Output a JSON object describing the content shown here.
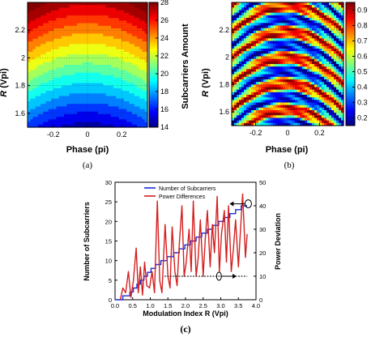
{
  "panels": {
    "a": {
      "caption": "(a)"
    },
    "b": {
      "caption": "(b)"
    },
    "c": {
      "caption": "(c)"
    }
  },
  "chart_data": [
    {
      "id": "a",
      "type": "heatmap",
      "xlabel": "Phase (pi)",
      "ylabel_italic": "R",
      "ylabel_rest": " (Vpi)",
      "xlim": [
        -0.35,
        0.35
      ],
      "ylim": [
        1.5,
        2.4
      ],
      "xticks": [
        -0.2,
        0,
        0.2
      ],
      "xtick_labels": [
        "-0.2",
        "0",
        "0.2"
      ],
      "yticks": [
        1.6,
        1.8,
        2,
        2.2
      ],
      "ytick_labels": [
        "1.6",
        "1.8",
        "2",
        "2.2"
      ],
      "grid": true,
      "colorbar": {
        "label": "Subcarriers Amount",
        "min": 14,
        "max": 28,
        "ticks": [
          14,
          16,
          18,
          20,
          22,
          24,
          26,
          28
        ],
        "tick_labels": [
          "14",
          "16",
          "18",
          "20",
          "22",
          "24",
          "26",
          "28"
        ]
      },
      "model": "Subcarriers Amount ≈ 14.5 + 14.1*(R-1.5) + 16*Phase^2 (filled contours, step 1)"
    },
    {
      "id": "b",
      "type": "heatmap",
      "xlabel": "Phase (pi)",
      "ylabel_italic": "R",
      "ylabel_rest": " (Vpi)",
      "xlim": [
        -0.35,
        0.35
      ],
      "ylim": [
        1.5,
        2.4
      ],
      "xticks": [
        -0.2,
        0,
        0.2
      ],
      "xtick_labels": [
        "-0.2",
        "0",
        "0.2"
      ],
      "yticks": [
        1.6,
        1.8,
        2,
        2.2
      ],
      "ytick_labels": [
        "1.6",
        "1.8",
        "2",
        "2.2"
      ],
      "grid": true,
      "colorbar": {
        "label": "",
        "min": 0.15,
        "max": 0.95,
        "ticks": [
          0.2,
          0.3,
          0.4,
          0.5,
          0.6,
          0.7,
          0.8,
          0.9
        ],
        "tick_labels": [
          "0.2",
          "0.3",
          "0.4",
          "0.5",
          "0.6",
          "0.7",
          "0.8",
          "0.9"
        ]
      },
      "model": "Oscillating power deviation bands along curves of constant R + 1.6*Phase^2 (period ~0.19 Vpi)"
    },
    {
      "id": "c",
      "type": "line",
      "xlabel": "Modulation Index R  (Vpi)",
      "ylabel_left": "Number of Subcarriers",
      "ylabel_right": "Power Deviation",
      "xlim": [
        0,
        4
      ],
      "ylim_left": [
        0,
        30
      ],
      "ylim_right": [
        0,
        50
      ],
      "xticks": [
        0,
        0.5,
        1,
        1.5,
        2,
        2.5,
        3,
        3.5,
        4
      ],
      "xtick_labels": [
        "0.0",
        "0.5",
        "1.0",
        "1.5",
        "2.0",
        "2.5",
        "3.0",
        "3.5",
        "4.0"
      ],
      "yticks_left": [
        0,
        5,
        10,
        15,
        20,
        25,
        30
      ],
      "ytick_labels_left": [
        "0",
        "5",
        "10",
        "15",
        "20",
        "25",
        "30"
      ],
      "yticks_right": [
        0,
        10,
        20,
        30,
        40,
        50
      ],
      "ytick_labels_right": [
        "0",
        "10",
        "20",
        "30",
        "40",
        "50"
      ],
      "legend_position": "top-center",
      "series": [
        {
          "name": "Number of Subcarriers",
          "color": "#1a2bd6",
          "axis": "left",
          "x": [
            0.0,
            0.22,
            0.22,
            0.42,
            0.42,
            0.52,
            0.52,
            0.62,
            0.62,
            0.72,
            0.72,
            0.82,
            0.82,
            0.92,
            0.92,
            1.02,
            1.02,
            1.15,
            1.15,
            1.3,
            1.3,
            1.48,
            1.48,
            1.66,
            1.66,
            1.82,
            1.82,
            1.98,
            1.98,
            2.14,
            2.14,
            2.3,
            2.3,
            2.46,
            2.46,
            2.62,
            2.62,
            2.78,
            2.78,
            2.94,
            2.94,
            3.1,
            3.1,
            3.26,
            3.26,
            3.42,
            3.42,
            3.58,
            3.58,
            3.75
          ],
          "values": [
            0,
            0,
            1,
            1,
            2,
            2,
            3,
            3,
            4,
            4,
            5,
            5,
            6,
            6,
            7,
            7,
            8,
            8,
            9,
            9,
            10,
            10,
            11,
            11,
            12,
            12,
            13,
            13,
            14,
            14,
            15,
            15,
            16,
            16,
            17,
            17,
            18,
            18,
            19,
            19,
            20,
            20,
            21,
            21,
            22,
            22,
            23,
            23,
            24,
            24
          ]
        },
        {
          "name": "Power Differences",
          "color": "#d42020",
          "axis": "right",
          "x": [
            0.15,
            0.22,
            0.3,
            0.38,
            0.45,
            0.52,
            0.6,
            0.66,
            0.72,
            0.78,
            0.84,
            0.9,
            0.98,
            1.05,
            1.12,
            1.2,
            1.27,
            1.33,
            1.42,
            1.5,
            1.56,
            1.62,
            1.7,
            1.76,
            1.82,
            1.9,
            1.96,
            2.02,
            2.1,
            2.16,
            2.22,
            2.3,
            2.36,
            2.42,
            2.5,
            2.56,
            2.62,
            2.7,
            2.76,
            2.82,
            2.9,
            2.96,
            3.02,
            3.1,
            3.16,
            3.22,
            3.3,
            3.36,
            3.42,
            3.5,
            3.56,
            3.62,
            3.7,
            3.75
          ],
          "values": [
            0,
            5,
            3,
            12,
            1,
            8,
            22,
            3,
            14,
            2,
            16,
            6,
            5,
            12,
            3,
            42,
            8,
            3,
            32,
            10,
            5,
            31,
            12,
            6,
            23,
            40,
            10,
            16,
            30,
            12,
            42,
            10,
            18,
            34,
            10,
            26,
            38,
            14,
            32,
            20,
            44,
            12,
            28,
            38,
            16,
            40,
            12,
            22,
            34,
            14,
            30,
            45,
            18,
            28
          ]
        }
      ],
      "annotations": {
        "reference_line_right_value": 10,
        "reference_line_x": [
          1.4,
          3.75
        ]
      }
    }
  ]
}
